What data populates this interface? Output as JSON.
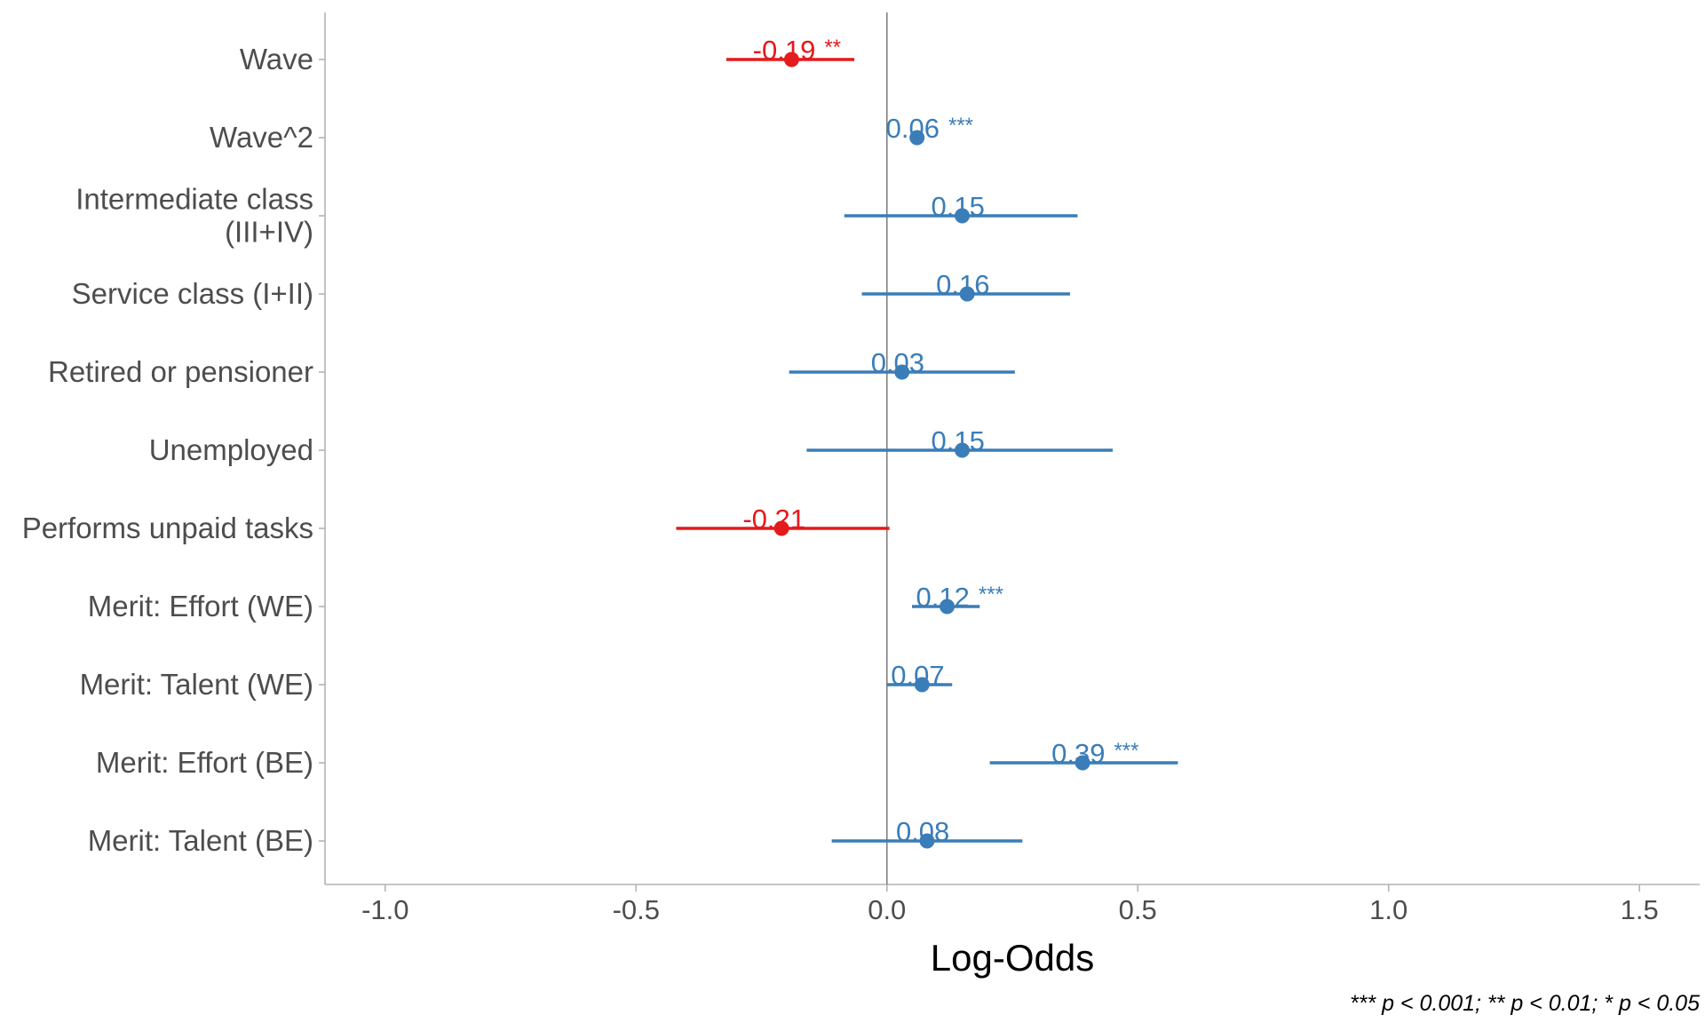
{
  "chart_data": {
    "type": "scatter",
    "subtype": "coefficient-plot",
    "xlabel": "Log-Odds",
    "xlim": [
      -1.12,
      1.62
    ],
    "xticks": [
      -1.0,
      -0.5,
      0.0,
      0.5,
      1.0,
      1.5
    ],
    "xtick_labels": [
      "-1.0",
      "-0.5",
      "0.0",
      "0.5",
      "1.0",
      "1.5"
    ],
    "reference_line": 0.0,
    "grid": false,
    "caption": "*** p < 0.001; ** p < 0.01; * p < 0.05",
    "colors": {
      "positive": "#3A7DB8",
      "negative": "#E41A1C",
      "axis": "#b3b3b3",
      "refline": "#7f7f7f"
    },
    "terms": [
      {
        "name": [
          "Wave"
        ],
        "estimate": -0.19,
        "ci": [
          -0.32,
          -0.065
        ],
        "label": "-0.19 **"
      },
      {
        "name": [
          "Wave^2"
        ],
        "estimate": 0.06,
        "ci": [
          0.05,
          0.07
        ],
        "label": "0.06 ***"
      },
      {
        "name": [
          "Intermediate class",
          "(III+IV)"
        ],
        "estimate": 0.15,
        "ci": [
          -0.085,
          0.38
        ],
        "label": "0.15"
      },
      {
        "name": [
          "Service class (I+II)"
        ],
        "estimate": 0.16,
        "ci": [
          -0.05,
          0.365
        ],
        "label": "0.16"
      },
      {
        "name": [
          "Retired or pensioner"
        ],
        "estimate": 0.03,
        "ci": [
          -0.195,
          0.255
        ],
        "label": "0.03"
      },
      {
        "name": [
          "Unemployed"
        ],
        "estimate": 0.15,
        "ci": [
          -0.16,
          0.45
        ],
        "label": "0.15"
      },
      {
        "name": [
          "Performs unpaid tasks"
        ],
        "estimate": -0.21,
        "ci": [
          -0.42,
          0.005
        ],
        "label": "-0.21"
      },
      {
        "name": [
          "Merit: Effort (WE)"
        ],
        "estimate": 0.12,
        "ci": [
          0.05,
          0.185
        ],
        "label": "0.12 ***"
      },
      {
        "name": [
          "Merit: Talent (WE)"
        ],
        "estimate": 0.07,
        "ci": [
          0.0,
          0.13
        ],
        "label": "0.07"
      },
      {
        "name": [
          "Merit: Effort (BE)"
        ],
        "estimate": 0.39,
        "ci": [
          0.205,
          0.58
        ],
        "label": "0.39 ***"
      },
      {
        "name": [
          "Merit: Talent (BE)"
        ],
        "estimate": 0.08,
        "ci": [
          -0.11,
          0.27
        ],
        "label": "0.08"
      }
    ]
  }
}
